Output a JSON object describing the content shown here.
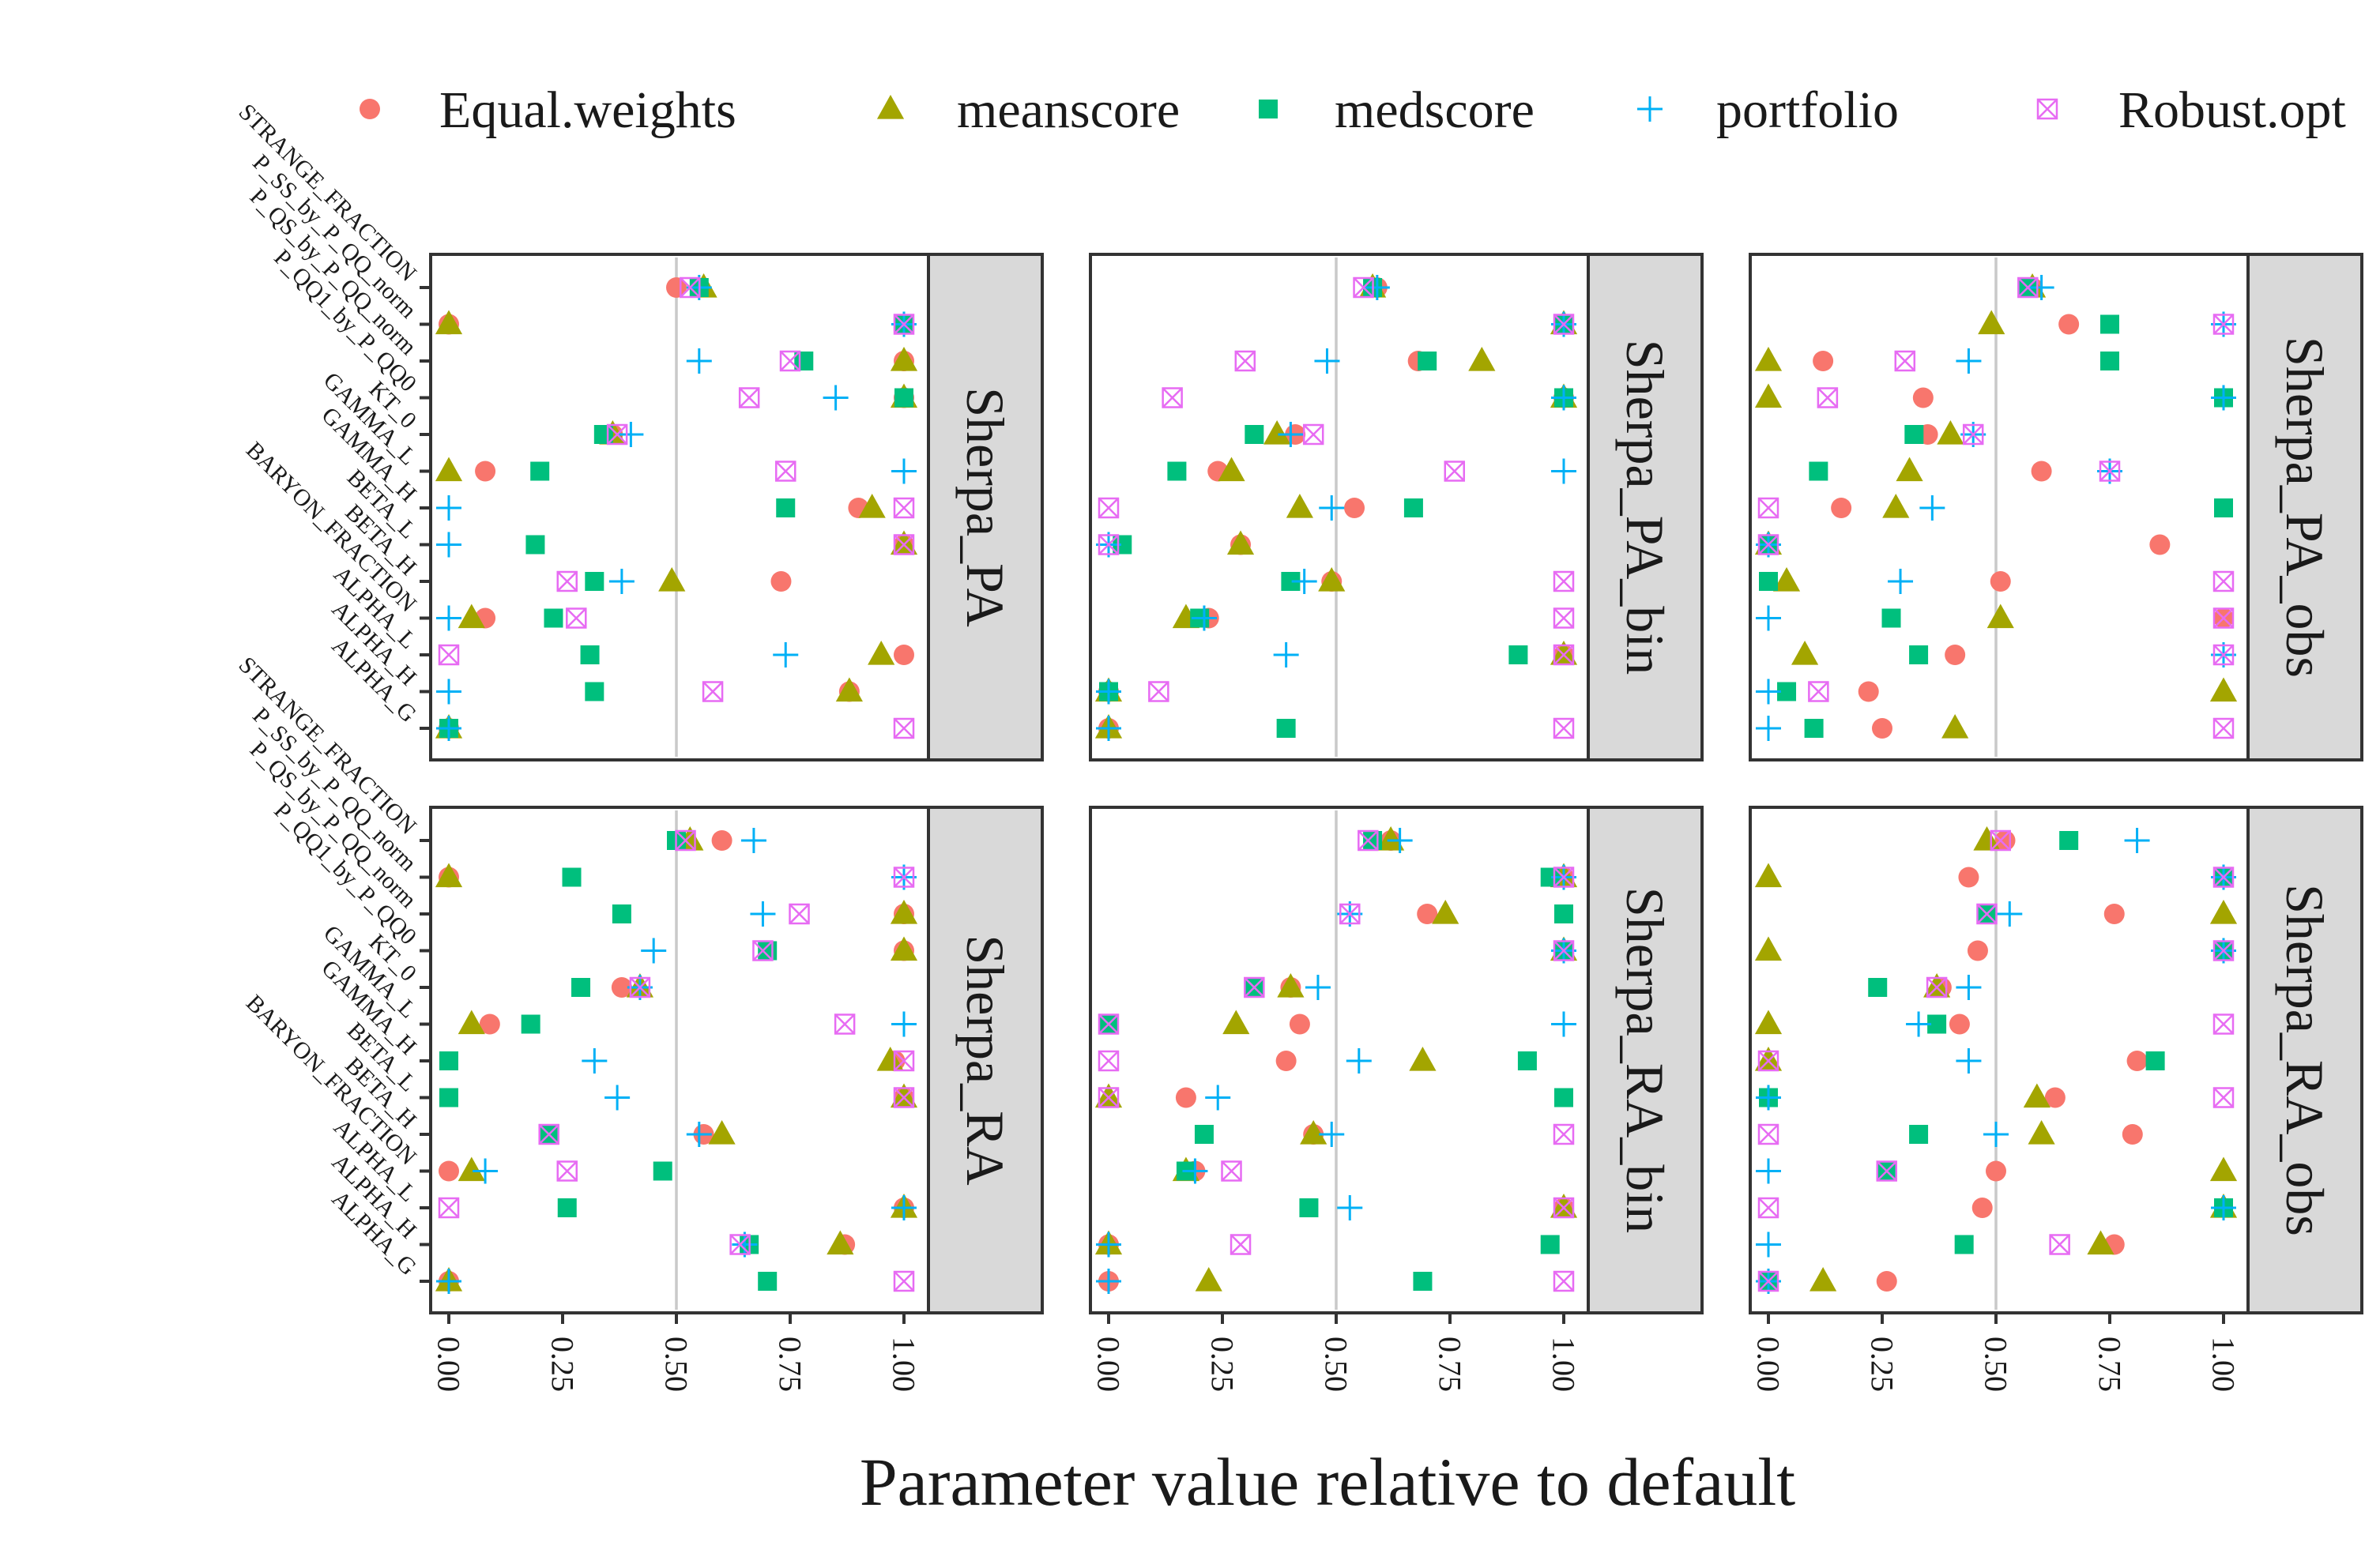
{
  "chart_data": {
    "type": "scatter",
    "xlabel": "Parameter value relative to default",
    "xlim": [
      0,
      1
    ],
    "xticks": [
      "0.00",
      "0.25",
      "0.50",
      "0.75",
      "1.00"
    ],
    "reference_line": 0.5,
    "legend_position": "top",
    "parameters": [
      "STRANGE_FRACTION",
      "P_SS_by_P_QQ_norm",
      "P_QS_by_P_QQ_norm",
      "P_QQ1_by_P_QQ0",
      "KT_0",
      "GAMMA_L",
      "GAMMA_H",
      "BETA_L",
      "BETA_H",
      "BARYON_FRACTION",
      "ALPHA_L",
      "ALPHA_H",
      "ALPHA_G"
    ],
    "series": [
      {
        "name": "Equal.weights",
        "marker": "circle",
        "color": "#F8766D"
      },
      {
        "name": "meanscore",
        "marker": "triangle",
        "color": "#A3A500"
      },
      {
        "name": "medscore",
        "marker": "square",
        "color": "#00BF7D"
      },
      {
        "name": "portfolio",
        "marker": "plus",
        "color": "#00B0F6"
      },
      {
        "name": "Robust.opt",
        "marker": "boxx",
        "color": "#E76BF3"
      }
    ],
    "panels": [
      {
        "label": "Sherpa_PA",
        "values": {
          "Equal.weights": [
            0.5,
            0.0,
            1.0,
            1.0,
            0.36,
            0.08,
            0.9,
            1.0,
            0.73,
            0.08,
            1.0,
            0.88,
            0.0
          ],
          "meanscore": [
            0.56,
            0.0,
            1.0,
            1.0,
            0.36,
            0.0,
            0.93,
            1.0,
            0.49,
            0.05,
            0.95,
            0.88,
            0.0
          ],
          "medscore": [
            0.55,
            1.0,
            0.78,
            1.0,
            0.34,
            0.2,
            0.74,
            0.19,
            0.32,
            0.23,
            0.31,
            0.32,
            0.0
          ],
          "portfolio": [
            0.55,
            1.0,
            0.55,
            0.85,
            0.4,
            1.0,
            0.0,
            0.0,
            0.38,
            0.0,
            0.74,
            0.0,
            0.0
          ],
          "Robust.opt": [
            0.53,
            1.0,
            0.75,
            0.66,
            0.37,
            0.74,
            1.0,
            1.0,
            0.26,
            0.28,
            0.0,
            0.58,
            1.0
          ]
        }
      },
      {
        "label": "Sherpa_PA_bin",
        "values": {
          "Equal.weights": [
            0.59,
            1.0,
            0.68,
            1.0,
            0.41,
            0.24,
            0.54,
            0.29,
            0.49,
            0.22,
            1.0,
            0.0,
            0.0
          ],
          "meanscore": [
            0.58,
            1.0,
            0.82,
            1.0,
            0.37,
            0.27,
            0.42,
            0.29,
            0.49,
            0.17,
            1.0,
            0.0,
            0.0
          ],
          "medscore": [
            0.58,
            1.0,
            0.7,
            1.0,
            0.32,
            0.15,
            0.67,
            0.03,
            0.4,
            0.2,
            0.9,
            0.0,
            0.39
          ],
          "portfolio": [
            0.59,
            1.0,
            0.48,
            1.0,
            0.4,
            1.0,
            0.49,
            0.0,
            0.43,
            0.21,
            0.39,
            0.0,
            0.0
          ],
          "Robust.opt": [
            0.56,
            1.0,
            0.3,
            0.14,
            0.45,
            0.76,
            0.0,
            0.0,
            1.0,
            1.0,
            1.0,
            0.11,
            1.0
          ]
        }
      },
      {
        "label": "Sherpa_PA_obs",
        "values": {
          "Equal.weights": [
            0.58,
            0.66,
            0.12,
            0.34,
            0.35,
            0.6,
            0.16,
            0.86,
            0.51,
            1.0,
            0.41,
            0.22,
            0.25
          ],
          "meanscore": [
            0.58,
            0.49,
            0.0,
            0.0,
            0.4,
            0.31,
            0.28,
            0.0,
            0.04,
            0.51,
            0.08,
            1.0,
            0.41
          ],
          "medscore": [
            0.57,
            0.75,
            0.75,
            1.0,
            0.32,
            0.11,
            1.0,
            0.0,
            0.0,
            0.27,
            0.33,
            0.04,
            0.1
          ],
          "portfolio": [
            0.6,
            1.0,
            0.44,
            1.0,
            0.45,
            0.75,
            0.36,
            0.0,
            0.29,
            0.0,
            1.0,
            0.0,
            0.0
          ],
          "Robust.opt": [
            0.57,
            1.0,
            0.3,
            0.13,
            0.45,
            0.75,
            0.0,
            0.0,
            1.0,
            1.0,
            1.0,
            0.11,
            1.0
          ]
        }
      },
      {
        "label": "Sherpa_RA",
        "values": {
          "Equal.weights": [
            0.6,
            0.0,
            1.0,
            1.0,
            0.38,
            0.09,
            0.98,
            1.0,
            0.56,
            0.0,
            1.0,
            0.87,
            0.0
          ],
          "meanscore": [
            0.53,
            0.0,
            1.0,
            1.0,
            0.42,
            0.05,
            0.97,
            1.0,
            0.6,
            0.05,
            1.0,
            0.86,
            0.0
          ],
          "medscore": [
            0.5,
            0.27,
            0.38,
            0.7,
            0.29,
            0.18,
            0.0,
            0.0,
            0.22,
            0.47,
            0.26,
            0.66,
            0.7
          ],
          "portfolio": [
            0.67,
            1.0,
            0.69,
            0.45,
            0.42,
            1.0,
            0.32,
            0.37,
            0.55,
            0.08,
            1.0,
            0.65,
            0.0
          ],
          "Robust.opt": [
            0.52,
            1.0,
            0.77,
            0.69,
            0.42,
            0.87,
            1.0,
            1.0,
            0.22,
            0.26,
            0.0,
            0.64,
            1.0
          ]
        }
      },
      {
        "label": "Sherpa_RA_bin",
        "values": {
          "Equal.weights": [
            0.62,
            1.0,
            0.7,
            1.0,
            0.4,
            0.42,
            0.39,
            0.17,
            0.45,
            0.19,
            1.0,
            0.0,
            0.0
          ],
          "meanscore": [
            0.62,
            1.0,
            0.74,
            1.0,
            0.4,
            0.28,
            0.69,
            0.0,
            0.45,
            0.17,
            1.0,
            0.0,
            0.22
          ],
          "medscore": [
            0.58,
            0.97,
            1.0,
            1.0,
            0.32,
            0.0,
            0.92,
            1.0,
            0.21,
            0.17,
            0.44,
            0.97,
            0.69
          ],
          "portfolio": [
            0.64,
            1.0,
            0.53,
            1.0,
            0.46,
            1.0,
            0.55,
            0.24,
            0.49,
            0.19,
            0.53,
            0.0,
            0.0
          ],
          "Robust.opt": [
            0.57,
            1.0,
            0.53,
            1.0,
            0.32,
            0.0,
            0.0,
            0.0,
            1.0,
            0.27,
            1.0,
            0.29,
            1.0
          ]
        }
      },
      {
        "label": "Sherpa_RA_obs",
        "values": {
          "Equal.weights": [
            0.52,
            0.44,
            0.76,
            0.46,
            0.38,
            0.42,
            0.81,
            0.63,
            0.8,
            0.5,
            0.47,
            0.76,
            0.26
          ],
          "meanscore": [
            0.48,
            0.0,
            1.0,
            0.0,
            0.37,
            0.0,
            0.0,
            0.59,
            0.6,
            1.0,
            1.0,
            0.73,
            0.12
          ],
          "medscore": [
            0.66,
            1.0,
            0.48,
            1.0,
            0.24,
            0.37,
            0.85,
            0.0,
            0.33,
            0.26,
            1.0,
            0.43,
            0.0
          ],
          "portfolio": [
            0.81,
            1.0,
            0.53,
            1.0,
            0.44,
            0.33,
            0.44,
            0.0,
            0.5,
            0.0,
            1.0,
            0.0,
            0.0
          ],
          "Robust.opt": [
            0.51,
            1.0,
            0.48,
            1.0,
            0.37,
            1.0,
            0.0,
            1.0,
            0.0,
            0.26,
            0.0,
            0.64,
            0.0
          ]
        }
      }
    ]
  }
}
